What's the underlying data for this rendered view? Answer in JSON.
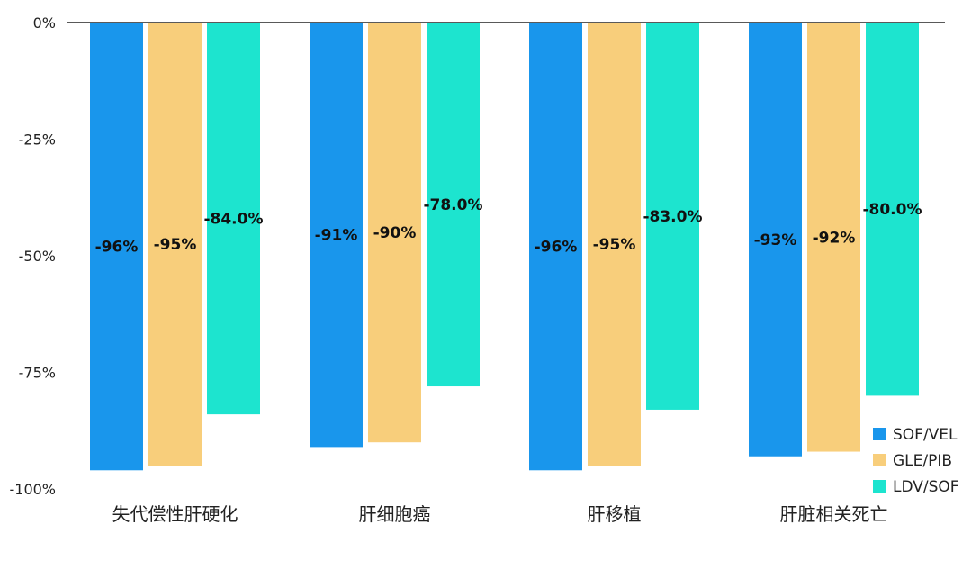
{
  "chart_data": {
    "type": "bar",
    "categories": [
      "失代偿性肝硬化",
      "肝细胞癌",
      "肝移植",
      "肝脏相关死亡"
    ],
    "series": [
      {
        "name": "SOF/VEL",
        "color": "#1996ec",
        "values": [
          -96,
          -91,
          -96,
          -93
        ],
        "labels": [
          "-96%",
          "-91%",
          "-96%",
          "-93%"
        ]
      },
      {
        "name": "GLE/PIB",
        "color": "#f8ce7b",
        "values": [
          -95,
          -90,
          -95,
          -92
        ],
        "labels": [
          "-95%",
          "-90%",
          "-95%",
          "-92%"
        ]
      },
      {
        "name": "LDV/SOF",
        "color": "#1de4cf",
        "values": [
          -84.0,
          -78.0,
          -83.0,
          -80.0
        ],
        "labels": [
          "-84.0%",
          "-78.0%",
          "-83.0%",
          "-80.0%"
        ]
      }
    ],
    "y_ticks": [
      {
        "value": 0,
        "label": "0%"
      },
      {
        "value": -25,
        "label": "-25%"
      },
      {
        "value": -50,
        "label": "-50%"
      },
      {
        "value": -75,
        "label": "-75%"
      },
      {
        "value": -100,
        "label": "-100%"
      }
    ],
    "ylim": [
      -100,
      0
    ],
    "grid": false,
    "legend_position": "bottom-right",
    "title": "",
    "xlabel": "",
    "ylabel": ""
  }
}
